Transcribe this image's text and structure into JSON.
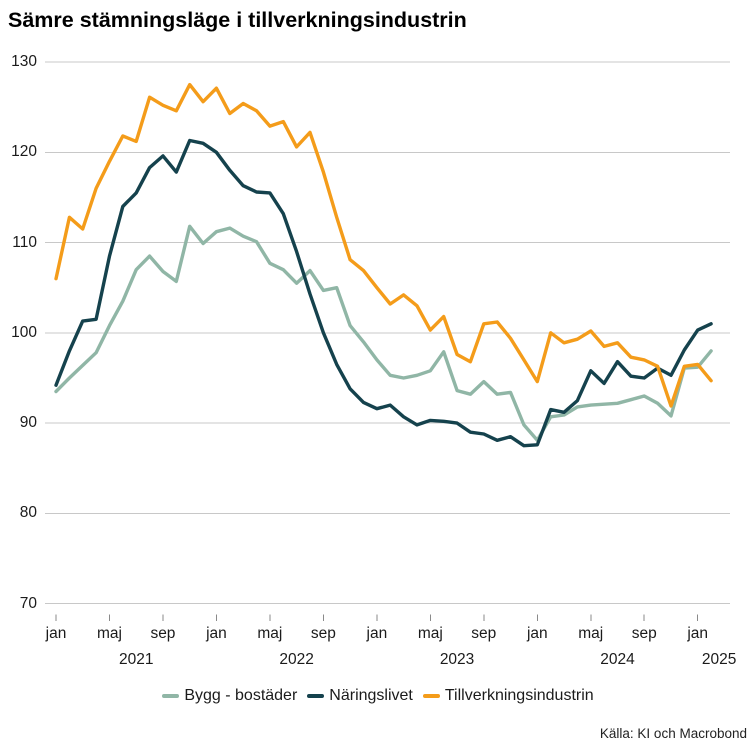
{
  "title": "Sämre stämningsläge i tillverkningsindustrin",
  "source": "Källa: KI och Macrobond",
  "colors": {
    "grid": "#c8c8c8",
    "tick": "#8a8a8a",
    "axis_text": "#1b1b1b",
    "bygg": "#90b6a6",
    "naringslivet": "#15424d",
    "tillverkning": "#f49c1a"
  },
  "chart_data": {
    "type": "line",
    "title": "Sämre stämningsläge i tillverkningsindustrin",
    "x_start": "jan 2021",
    "x_end": "feb 2025",
    "months_per_point": 1,
    "ylim": [
      70,
      130
    ],
    "grid": "horizontal",
    "legend_position": "bottom-center",
    "y_ticks": [
      130,
      120,
      110,
      100,
      90,
      80,
      70
    ],
    "x_ticks": [
      {
        "label": "jan",
        "i": 0
      },
      {
        "label": "maj",
        "i": 4
      },
      {
        "label": "sep",
        "i": 8
      },
      {
        "label": "jan",
        "i": 12
      },
      {
        "label": "maj",
        "i": 16
      },
      {
        "label": "sep",
        "i": 20
      },
      {
        "label": "jan",
        "i": 24
      },
      {
        "label": "maj",
        "i": 28
      },
      {
        "label": "sep",
        "i": 32
      },
      {
        "label": "jan",
        "i": 36
      },
      {
        "label": "maj",
        "i": 40
      },
      {
        "label": "sep",
        "i": 44
      },
      {
        "label": "jan",
        "i": 48
      }
    ],
    "year_labels": [
      {
        "label": "2021",
        "i": 6
      },
      {
        "label": "2022",
        "i": 18
      },
      {
        "label": "2023",
        "i": 30
      },
      {
        "label": "2024",
        "i": 42
      },
      {
        "label": "2025",
        "i": 49.6
      }
    ],
    "series": [
      {
        "name": "Bygg - bostäder",
        "color": "#90b6a6",
        "values": [
          93.5,
          95.0,
          96.4,
          97.8,
          100.8,
          103.5,
          107.0,
          108.5,
          106.8,
          105.7,
          111.8,
          109.9,
          111.2,
          111.6,
          110.7,
          110.1,
          107.7,
          107.0,
          105.5,
          106.9,
          104.7,
          105.0,
          100.8,
          99.0,
          97.0,
          95.3,
          95.0,
          95.3,
          95.8,
          97.9,
          93.6,
          93.2,
          94.6,
          93.2,
          93.4,
          89.8,
          88.1,
          90.7,
          90.9,
          91.8,
          92.0,
          92.1,
          92.2,
          92.6,
          93.0,
          92.2,
          90.8,
          96.1,
          96.2,
          98.0
        ]
      },
      {
        "name": "Näringslivet",
        "color": "#15424d",
        "values": [
          94.2,
          98.0,
          101.3,
          101.5,
          108.5,
          114.0,
          115.5,
          118.3,
          119.6,
          117.8,
          121.3,
          121.0,
          120.0,
          118.0,
          116.3,
          115.6,
          115.5,
          113.2,
          109.0,
          104.3,
          100.0,
          96.5,
          93.8,
          92.3,
          91.6,
          92.0,
          90.7,
          89.8,
          90.3,
          90.2,
          90.0,
          89.0,
          88.8,
          88.1,
          88.5,
          87.5,
          87.6,
          91.5,
          91.2,
          92.5,
          95.8,
          94.4,
          96.8,
          95.2,
          95.0,
          96.1,
          95.3,
          98.1,
          100.3,
          101.0
        ]
      },
      {
        "name": "Tillverkningsindustrin",
        "color": "#f49c1a",
        "values": [
          106.0,
          112.8,
          111.5,
          116.0,
          119.0,
          121.8,
          121.2,
          126.1,
          125.2,
          124.6,
          127.5,
          125.6,
          127.1,
          124.3,
          125.4,
          124.6,
          122.9,
          123.4,
          120.6,
          122.2,
          117.8,
          112.8,
          108.1,
          106.9,
          105.0,
          103.2,
          104.2,
          103.0,
          100.3,
          101.8,
          97.6,
          96.8,
          101.0,
          101.2,
          99.4,
          97.0,
          94.6,
          100.0,
          98.9,
          99.3,
          100.2,
          98.5,
          98.9,
          97.3,
          97.0,
          96.3,
          91.9,
          96.3,
          96.5,
          94.7
        ]
      }
    ]
  }
}
